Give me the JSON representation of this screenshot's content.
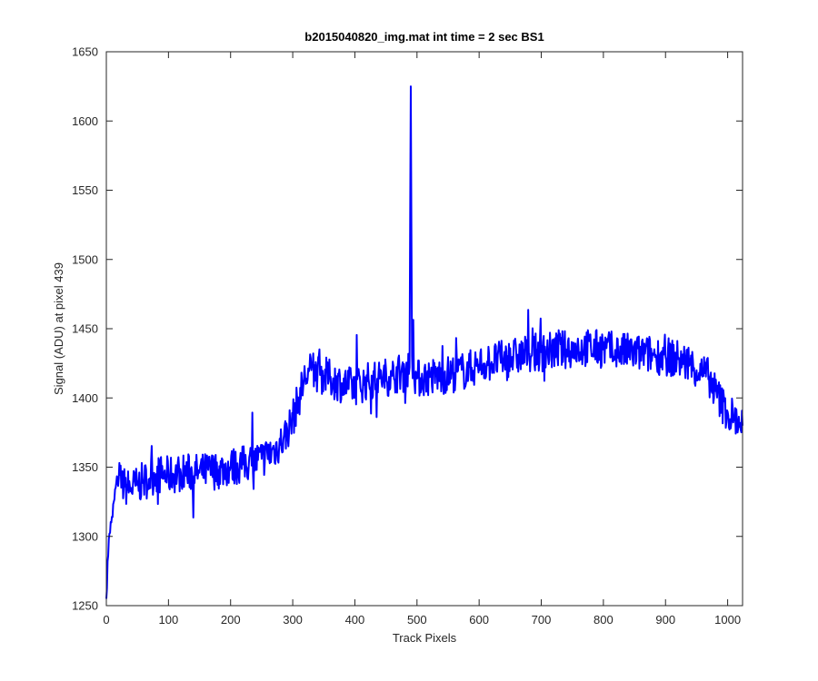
{
  "chart_data": {
    "type": "line",
    "title": "b2015040820_img.mat int time = 2 sec   BS1",
    "xlabel": "Track Pixels",
    "ylabel": "Signal (ADU) at pixel 439",
    "xlim": [
      0,
      1024
    ],
    "ylim": [
      1250,
      1650
    ],
    "xticks": [
      0,
      100,
      200,
      300,
      400,
      500,
      600,
      700,
      800,
      900,
      1000
    ],
    "yticks": [
      1250,
      1300,
      1350,
      1400,
      1450,
      1500,
      1550,
      1600,
      1650
    ],
    "grid": false,
    "line_color": "#0000ff",
    "series": [
      {
        "x": [
          0,
          2,
          5,
          8,
          10,
          12,
          15,
          18,
          20,
          25,
          30,
          40,
          50,
          60,
          70,
          80,
          100,
          120,
          150,
          180,
          200,
          220,
          250,
          270,
          285,
          300,
          310,
          320,
          330,
          340,
          350,
          360,
          380,
          400,
          420,
          440,
          460,
          480,
          488,
          490,
          492,
          495,
          500,
          520,
          540,
          560,
          580,
          600,
          620,
          640,
          660,
          680,
          700,
          720,
          740,
          760,
          780,
          800,
          820,
          840,
          860,
          880,
          900,
          920,
          940,
          950,
          960,
          970,
          980,
          990,
          1000,
          1010,
          1020,
          1024
        ],
        "y": [
          1255,
          1282,
          1302,
          1310,
          1314,
          1325,
          1335,
          1340,
          1342,
          1338,
          1336,
          1335,
          1337,
          1340,
          1342,
          1345,
          1344,
          1346,
          1346,
          1348,
          1350,
          1352,
          1356,
          1362,
          1370,
          1385,
          1400,
          1415,
          1420,
          1418,
          1416,
          1414,
          1410,
          1408,
          1412,
          1414,
          1416,
          1420,
          1422,
          1625,
          1430,
          1418,
          1414,
          1415,
          1416,
          1418,
          1420,
          1424,
          1426,
          1428,
          1430,
          1432,
          1433,
          1434,
          1435,
          1436,
          1436,
          1435,
          1434,
          1433,
          1432,
          1431,
          1430,
          1428,
          1424,
          1420,
          1418,
          1415,
          1405,
          1396,
          1390,
          1386,
          1382,
          1380
        ]
      }
    ]
  }
}
